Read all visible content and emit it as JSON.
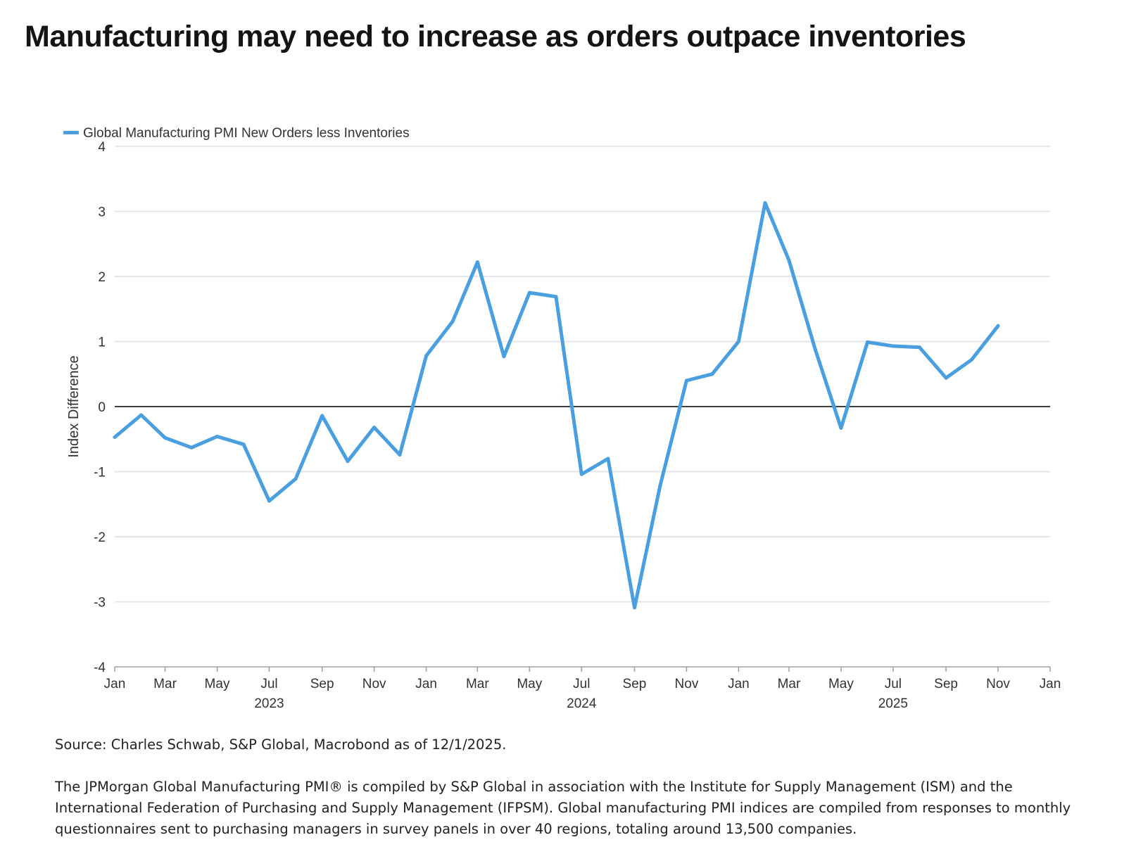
{
  "title": "Manufacturing may need to increase as orders outpace inventories",
  "chart_data": {
    "type": "line",
    "legend_position": "top-left",
    "grid": true,
    "ylabel": "Index Difference",
    "ylim": [
      -4,
      4
    ],
    "yticks": [
      "4",
      "3",
      "2",
      "1",
      "0",
      "-1",
      "-2",
      "-3",
      "-4"
    ],
    "ytick_values": [
      4,
      3,
      2,
      1,
      0,
      -1,
      -2,
      -3,
      -4
    ],
    "xlim": [
      "2023-01-01",
      "2026-01-01"
    ],
    "xticks": [
      {
        "label": "Jan",
        "date": "2023-01-01"
      },
      {
        "label": "Mar",
        "date": "2023-03-01"
      },
      {
        "label": "May",
        "date": "2023-05-01"
      },
      {
        "label": "Jul",
        "date": "2023-07-01"
      },
      {
        "label": "Sep",
        "date": "2023-09-01"
      },
      {
        "label": "Nov",
        "date": "2023-11-01"
      },
      {
        "label": "Jan",
        "date": "2024-01-01"
      },
      {
        "label": "Mar",
        "date": "2024-03-01"
      },
      {
        "label": "May",
        "date": "2024-05-01"
      },
      {
        "label": "Jul",
        "date": "2024-07-01"
      },
      {
        "label": "Sep",
        "date": "2024-09-01"
      },
      {
        "label": "Nov",
        "date": "2024-11-01"
      },
      {
        "label": "Jan",
        "date": "2025-01-01"
      },
      {
        "label": "Mar",
        "date": "2025-03-01"
      },
      {
        "label": "May",
        "date": "2025-05-01"
      },
      {
        "label": "Jul",
        "date": "2025-07-01"
      },
      {
        "label": "Sep",
        "date": "2025-09-01"
      },
      {
        "label": "Nov",
        "date": "2025-11-01"
      },
      {
        "label": "Jan",
        "date": "2026-01-01"
      }
    ],
    "year_labels": [
      {
        "label": "2023",
        "date": "2023-07-01"
      },
      {
        "label": "2024",
        "date": "2024-07-01"
      },
      {
        "label": "2025",
        "date": "2025-07-01"
      }
    ],
    "series": [
      {
        "name": "Global Manufacturing PMI New Orders less Inventories",
        "color": "#4a9fe0",
        "x": [
          "2023-01",
          "2023-02",
          "2023-03",
          "2023-04",
          "2023-05",
          "2023-06",
          "2023-07",
          "2023-08",
          "2023-09",
          "2023-10",
          "2023-11",
          "2023-12",
          "2024-01",
          "2024-02",
          "2024-03",
          "2024-04",
          "2024-05",
          "2024-06",
          "2024-07",
          "2024-08",
          "2024-09",
          "2024-10",
          "2024-11",
          "2024-12",
          "2025-01",
          "2025-02",
          "2025-03",
          "2025-04",
          "2025-05",
          "2025-06",
          "2025-07",
          "2025-08",
          "2025-09",
          "2025-10",
          "2025-11"
        ],
        "values": [
          -0.47,
          -0.13,
          -0.48,
          -0.63,
          -0.46,
          -0.58,
          -1.45,
          -1.11,
          -0.14,
          -0.84,
          -0.32,
          -0.74,
          0.78,
          1.31,
          2.22,
          0.77,
          1.75,
          1.69,
          -1.04,
          -0.8,
          -3.09,
          -1.22,
          0.4,
          0.5,
          1.0,
          3.13,
          2.25,
          0.87,
          -0.33,
          0.99,
          0.93,
          0.91,
          0.44,
          0.72,
          1.24
        ]
      }
    ]
  },
  "footnotes": {
    "source": "Source: Charles Schwab, S&P Global, Macrobond as of 12/1/2025.",
    "description": "The JPMorgan Global Manufacturing PMI® is compiled by S&P Global in association with the Institute for Supply Management (ISM) and the International Federation of Purchasing and Supply Management (IFPSM). Global manufacturing PMI indices are compiled from responses to monthly questionnaires sent to purchasing managers in survey panels in over 40 regions, totaling around 13,500 companies."
  }
}
